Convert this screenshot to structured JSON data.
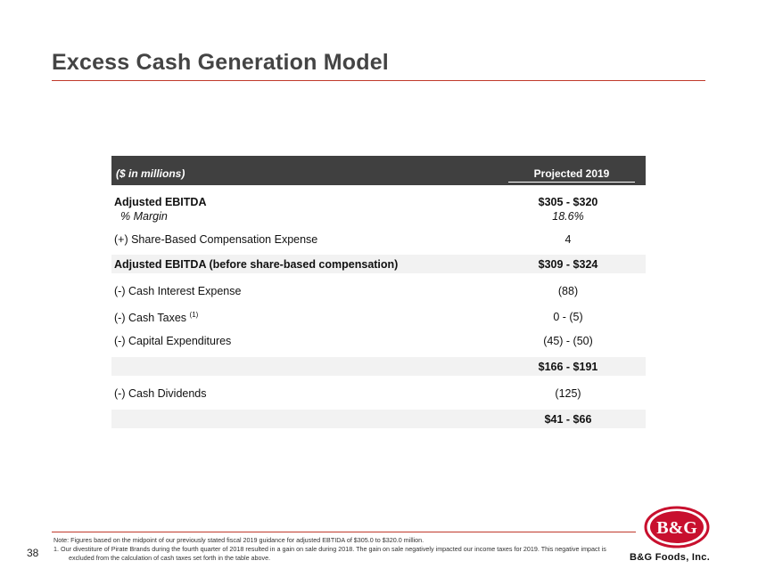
{
  "title": "Excess Cash Generation Model",
  "table": {
    "unit_label": "($ in millions)",
    "column_header": "Projected 2019",
    "rows": [
      {
        "label": "Adjusted EBITDA",
        "value": "$305  -  $320"
      },
      {
        "label": "% Margin",
        "value": "18.6%"
      },
      {
        "label": "(+) Share-Based Compensation Expense",
        "value": "4"
      },
      {
        "label": "Adjusted EBITDA (before share-based compensation)",
        "value": "$309  -  $324"
      },
      {
        "label": "(-) Cash Interest Expense",
        "value": "(88)"
      },
      {
        "label": "(-) Cash Taxes",
        "label_sup": "(1)",
        "value": "0   -  (5)"
      },
      {
        "label": "(-) Capital Expenditures",
        "value": "(45)  -  (50)"
      },
      {
        "label": "",
        "value": "$166  -  $191"
      },
      {
        "label": "(-) Cash Dividends",
        "value": "(125)"
      },
      {
        "label": "",
        "value": "$41  -  $66"
      }
    ]
  },
  "footer": {
    "page_number": "38",
    "note": "Note:  Figures based on the midpoint of our previously stated fiscal 2019 guidance for adjusted EBTIDA  of $305.0 to $320.0 million.",
    "footnote": "1.     Our divestiture of Pirate Brands during the fourth quarter of 2018 resulted in a gain on sale during 2018. The gain on sale negatively impacted our income taxes for 2019. This negative impact is excluded from the calculation of cash taxes set forth in the table above.",
    "brand": "B&G Foods, Inc.",
    "logo_text": "B&G"
  },
  "colors": {
    "accent_rule": "#c0392b",
    "header_bg": "#404040",
    "row_shade": "#f2f2f2",
    "logo_red": "#c8102e"
  }
}
